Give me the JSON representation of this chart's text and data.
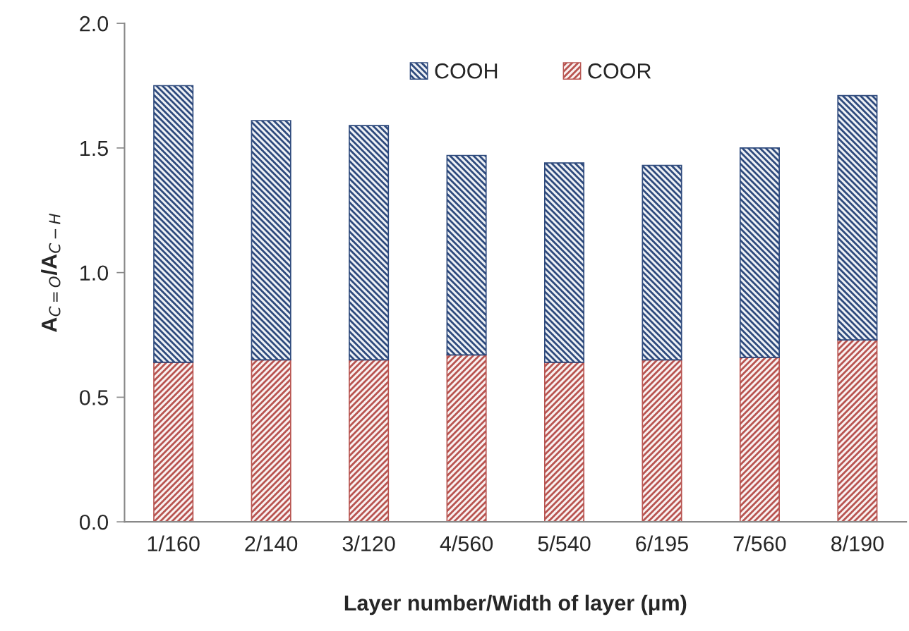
{
  "chart_data": {
    "type": "bar",
    "stacked": true,
    "xlabel": "Layer number/Width of layer (μm)",
    "ylabel": "A$_{C=O}$/A$_{C−H}$",
    "categories": [
      "1/160",
      "2/140",
      "3/120",
      "4/560",
      "5/540",
      "6/195",
      "7/560",
      "8/190"
    ],
    "series": [
      {
        "name": "COOR",
        "color": "#b85450",
        "values": [
          0.64,
          0.65,
          0.65,
          0.67,
          0.64,
          0.65,
          0.66,
          0.73
        ]
      },
      {
        "name": "COOH",
        "color": "#2e4a7d",
        "values": [
          1.11,
          0.96,
          0.94,
          0.8,
          0.8,
          0.78,
          0.84,
          0.98
        ]
      }
    ],
    "ylim": [
      0,
      2.0
    ],
    "yticks": [
      {
        "value": 0,
        "label": "0.0"
      },
      {
        "value": 0.5,
        "label": "0.5"
      },
      {
        "value": 1.0,
        "label": "1.0"
      },
      {
        "value": 1.5,
        "label": "1.5"
      },
      {
        "value": 2.0,
        "label": "2.0"
      }
    ],
    "grid": false,
    "legend": "top"
  }
}
